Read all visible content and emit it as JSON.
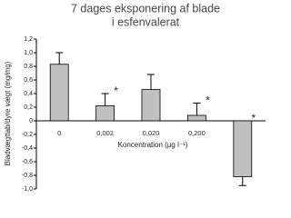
{
  "chart_data": {
    "type": "bar",
    "title": [
      "7 dages eksponering af blade",
      "i esfenvalerat"
    ],
    "ylabel": "Bladvægttab/dyre vægt (mg/mg)",
    "xlabel": "Koncentration (µg l⁻¹)",
    "categories": [
      "0",
      "0,002",
      "0,020",
      "0,200",
      "2,000"
    ],
    "values": [
      0.83,
      0.22,
      0.46,
      0.08,
      -0.82
    ],
    "errors": [
      0.17,
      0.18,
      0.22,
      0.18,
      0.13
    ],
    "significance": [
      null,
      "*",
      null,
      "*",
      "*"
    ],
    "color": "#c0c0c0",
    "ylim": [
      -1.0,
      1.2
    ],
    "yticks": [
      {
        "value": -1.0,
        "label": "-1,0"
      },
      {
        "value": -0.8,
        "label": "-0,8"
      },
      {
        "value": -0.6,
        "label": "-0,6"
      },
      {
        "value": -0.4,
        "label": "-0,4"
      },
      {
        "value": -0.2,
        "label": "-0,2"
      },
      0,
      {
        "value": 0.2,
        "label": "0,2"
      },
      {
        "value": 0.4,
        "label": "0,4"
      },
      {
        "value": 0.6,
        "label": "0,6"
      },
      {
        "value": 0.8,
        "label": "0,8"
      },
      {
        "value": 1.0,
        "label": "1,0"
      },
      {
        "value": 1.2,
        "label": "1,2"
      }
    ]
  }
}
